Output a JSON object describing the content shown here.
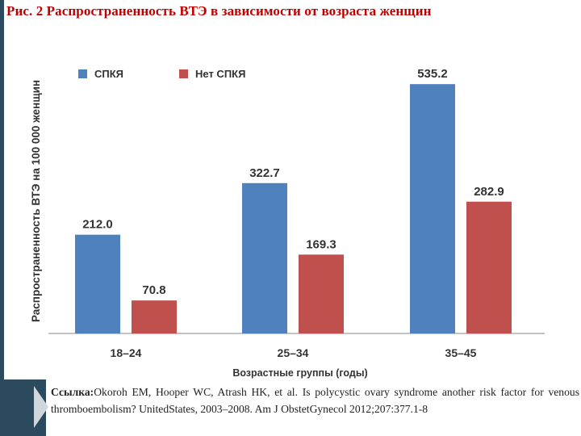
{
  "figure_title": "Рис. 2 Распространенность ВТЭ в зависимости от возраста женщин",
  "reference": {
    "label": "Ссылка:",
    "text": "Okoroh EM, Hooper WC, Atrash HK, et al. Is polycystic ovary syndrome another risk factor for venous thromboembolism? UnitedStates, 2003–2008. Am J ObstetGynecol 2012;207:377.1-8"
  },
  "colors": {
    "series_1": "#4f81bd",
    "series_2": "#c0504d",
    "title": "#c00000",
    "axis": "#b0b0b0"
  },
  "chart_data": {
    "type": "bar",
    "title": "",
    "xlabel": "Возрастные группы (годы)",
    "ylabel": "Распространенность ВТЭ на 100 000 женщин",
    "categories": [
      "18–24",
      "25–34",
      "35–45"
    ],
    "series": [
      {
        "name": "СПКЯ",
        "values": [
          212.0,
          322.7,
          535.2
        ],
        "labels": [
          "212.0",
          "322.7",
          "535.2"
        ]
      },
      {
        "name": "Нет СПКЯ",
        "values": [
          70.8,
          169.3,
          282.9
        ],
        "labels": [
          "70.8",
          "169.3",
          "282.9"
        ]
      }
    ],
    "ylim": [
      0,
      600
    ],
    "grid": false,
    "legend": "top-left",
    "data_labels": true
  }
}
